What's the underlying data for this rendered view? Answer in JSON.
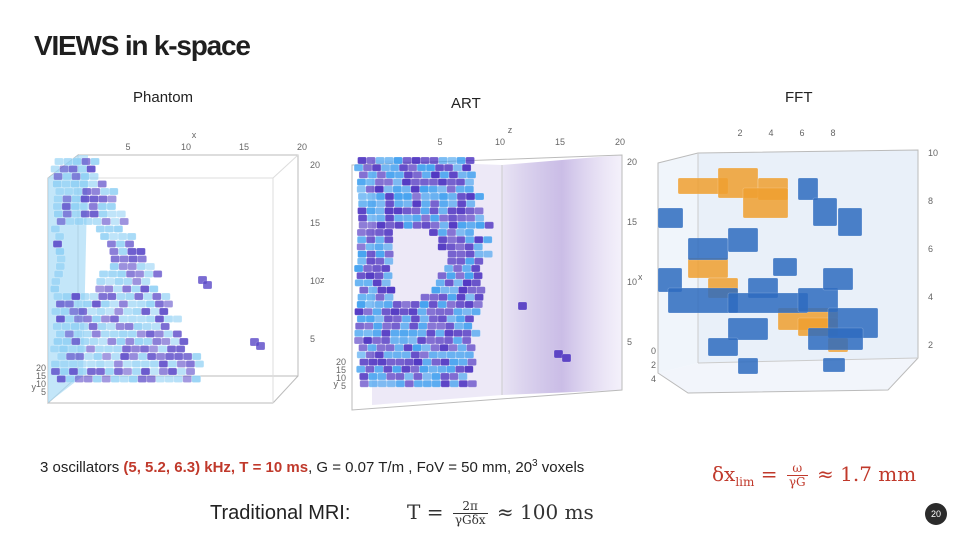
{
  "slide": {
    "title": "VIEWS in k-space",
    "page_number": "20"
  },
  "panels": {
    "phantom": {
      "label": "Phantom",
      "top_axis_name": "x",
      "top_ticks": [
        "5",
        "10",
        "15",
        "20"
      ],
      "right_axis_name": "z",
      "right_ticks": [
        "20",
        "15",
        "10",
        "5"
      ],
      "left_axis_name": "y",
      "left_ticks": [
        "20",
        "15",
        "10",
        "5"
      ],
      "colors": {
        "main": "#5a48c8",
        "light": "#8fd0f5"
      }
    },
    "art": {
      "label": "ART",
      "top_axis_name": "z",
      "top_ticks": [
        "5",
        "10",
        "15",
        "20"
      ],
      "right_axis_name": "x",
      "right_ticks": [
        "20",
        "15",
        "10",
        "5"
      ],
      "left_axis_name": "y",
      "left_ticks": [
        "20",
        "15",
        "10",
        "5"
      ],
      "colors": {
        "main": "#4a2fc0",
        "light": "#3fa0f0"
      }
    },
    "fft": {
      "label": "FFT",
      "top_ticks": [
        "2",
        "4",
        "6",
        "8"
      ],
      "right_ticks": [
        "10",
        "8",
        "6",
        "4",
        "2"
      ],
      "left_ticks": [
        "0",
        "2",
        "4"
      ],
      "colors": {
        "orange": "#f0a030",
        "blue": "#2e6cc0"
      }
    }
  },
  "info_line": {
    "prefix": "3 oscillators ",
    "highlight": "(5, 5.2, 6.3) kHz, T = 10 ms",
    "middle": ", G = 0.07 T/m , FoV = 50 mm, 20",
    "superscript": "3",
    "suffix": " voxels"
  },
  "formula_resolution": {
    "lhs": "δx",
    "subscript": "lim",
    "equals": " = ",
    "numerator": "ω",
    "denominator": "γG",
    "approx": " ≈ 1.7 mm"
  },
  "traditional": {
    "label": "Traditional MRI:",
    "lhs": "T = ",
    "numerator": "2π",
    "denominator": "γGδx",
    "approx": " ≈ 100 ms"
  }
}
